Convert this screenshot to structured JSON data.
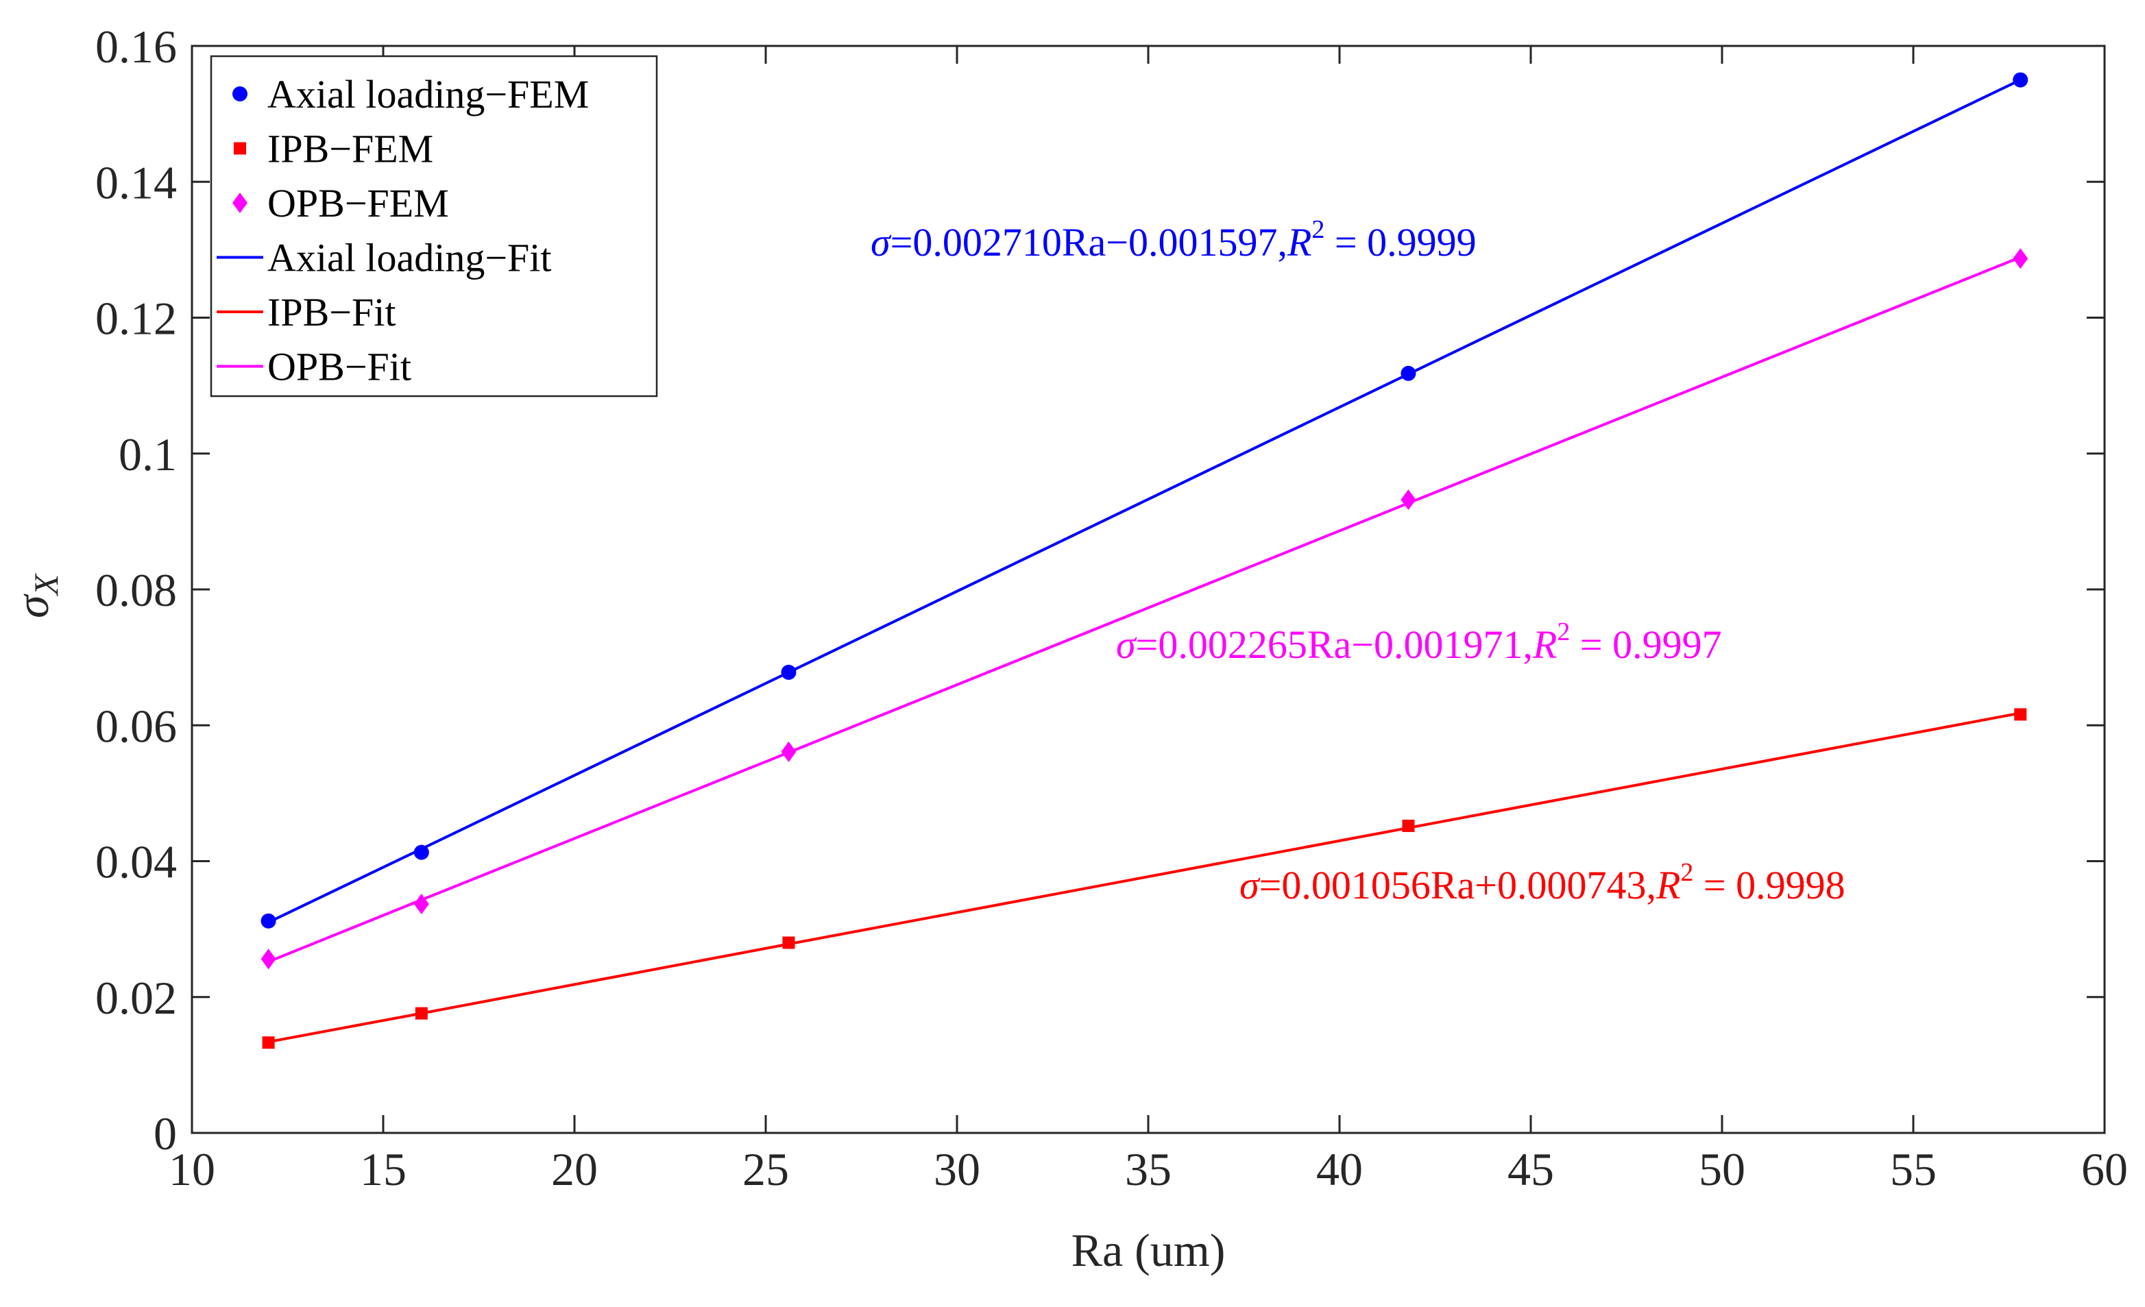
{
  "chart_data": {
    "type": "line",
    "title": "",
    "xlabel": "Ra (um)",
    "ylabel": "σ",
    "ylabel_subscript": "X",
    "xlim": [
      10,
      60
    ],
    "ylim": [
      0,
      0.16
    ],
    "xticks": [
      10,
      15,
      20,
      25,
      30,
      35,
      40,
      45,
      50,
      55,
      60
    ],
    "xtick_labels": [
      "10",
      "15",
      "20",
      "25",
      "30",
      "35",
      "40",
      "45",
      "50",
      "55",
      "60"
    ],
    "yticks": [
      0,
      0.02,
      0.04,
      0.06,
      0.08,
      0.1,
      0.12,
      0.14,
      0.16
    ],
    "ytick_labels": [
      "0",
      "0.02",
      "0.04",
      "0.06",
      "0.08",
      "0.1",
      "0.12",
      "0.14",
      "0.16"
    ],
    "grid": false,
    "legend_position": "top-left",
    "x": [
      12.0,
      16.0,
      25.6,
      41.8,
      57.8
    ],
    "series": [
      {
        "name": "Axial loading−FEM",
        "kind": "marker",
        "marker": "circle",
        "color": "#0000ff",
        "values": [
          0.0312,
          0.0413,
          0.0678,
          0.1118,
          0.155
        ]
      },
      {
        "name": "IPB−FEM",
        "kind": "marker",
        "marker": "square",
        "color": "#ff0000",
        "values": [
          0.0133,
          0.0176,
          0.028,
          0.0452,
          0.0616
        ]
      },
      {
        "name": "OPB−FEM",
        "kind": "marker",
        "marker": "diamond",
        "color": "#ff00ff",
        "values": [
          0.0256,
          0.0337,
          0.0561,
          0.0932,
          0.1287
        ]
      },
      {
        "name": "Axial loading−Fit",
        "kind": "line",
        "color": "#0000ff",
        "values": [
          0.031,
          0.0418,
          0.0678,
          0.1117,
          0.155
        ]
      },
      {
        "name": "IPB−Fit",
        "kind": "line",
        "color": "#ff0000",
        "values": [
          0.0134,
          0.0176,
          0.0278,
          0.0449,
          0.0618
        ]
      },
      {
        "name": "OPB−Fit",
        "kind": "line",
        "color": "#ff00ff",
        "values": [
          0.0252,
          0.0343,
          0.056,
          0.0927,
          0.1289
        ]
      }
    ],
    "annotations": [
      {
        "id": "axial",
        "color": "#0000ff",
        "sigma": "σ",
        "main": "=0.002710Ra−0.001597,",
        "r": "R",
        "sup": "2",
        "tail": " = 0.9999"
      },
      {
        "id": "opb",
        "color": "#ff00ff",
        "sigma": "σ",
        "main": "=0.002265Ra−0.001971,",
        "r": "R",
        "sup": "2",
        "tail": " = 0.9997"
      },
      {
        "id": "ipb",
        "color": "#ff0000",
        "sigma": "σ",
        "main": "=0.001056Ra+0.000743,",
        "r": "R",
        "sup": "2",
        "tail": " = 0.9998"
      }
    ]
  }
}
